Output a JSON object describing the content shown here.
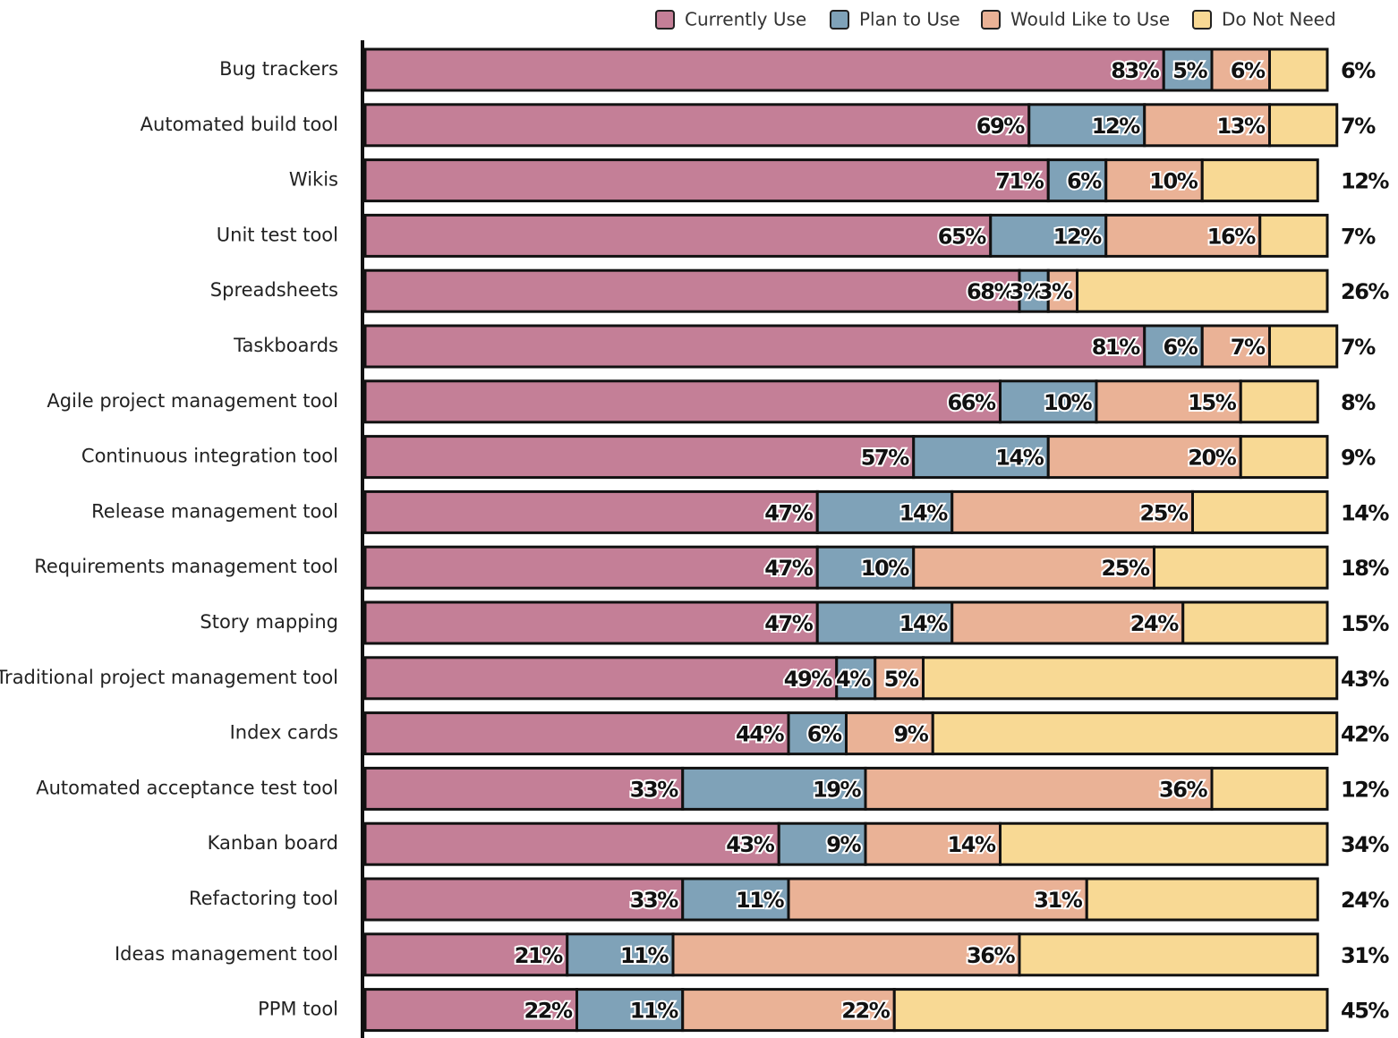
{
  "chart_data": {
    "type": "bar",
    "categories": [
      "Bug trackers",
      "Automated build tool",
      "Wikis",
      "Unit test tool",
      "Spreadsheets",
      "Taskboards",
      "Agile project management tool",
      "Continuous integration tool",
      "Release management tool",
      "Requirements management tool",
      "Story mapping",
      "Traditional project management tool",
      "Index cards",
      "Automated acceptance test tool",
      "Kanban board",
      "Refactoring tool",
      "Ideas management tool",
      "PPM tool"
    ],
    "series": [
      {
        "name": "Currently Use",
        "color": "#c47f97",
        "values": [
          83,
          69,
          71,
          65,
          68,
          81,
          66,
          57,
          47,
          47,
          47,
          49,
          44,
          33,
          43,
          33,
          21,
          22
        ],
        "value_labels": [
          "83%",
          "69%",
          "71%",
          "65%",
          "68%",
          "81%",
          "66%",
          "57%",
          "47%",
          "47%",
          "47%",
          "49%",
          "44%",
          "33%",
          "43%",
          "33%",
          "21%",
          "22%"
        ]
      },
      {
        "name": "Plan to Use",
        "color": "#7fa2b8",
        "values": [
          5,
          12,
          6,
          12,
          3,
          6,
          10,
          14,
          14,
          10,
          14,
          4,
          6,
          19,
          9,
          11,
          11,
          11
        ],
        "value_labels": [
          "5%",
          "12%",
          "6%",
          "12%",
          "3%",
          "6%",
          "10%",
          "14%",
          "14%",
          "10%",
          "14%",
          "4%",
          "6%",
          "19%",
          "9%",
          "11%",
          "11%",
          "11%"
        ]
      },
      {
        "name": "Would Like to Use",
        "color": "#eab296",
        "values": [
          6,
          13,
          10,
          16,
          3,
          7,
          15,
          20,
          25,
          25,
          24,
          5,
          9,
          36,
          14,
          31,
          36,
          22
        ],
        "value_labels": [
          "6%",
          "13%",
          "10%",
          "16%",
          "3%",
          "7%",
          "15%",
          "20%",
          "25%",
          "25%",
          "24%",
          "5%",
          "9%",
          "36%",
          "14%",
          "31%",
          "36%",
          "22%"
        ]
      },
      {
        "name": "Do Not Need",
        "color": "#f8d994",
        "values": [
          6,
          7,
          12,
          7,
          26,
          7,
          8,
          9,
          14,
          18,
          15,
          43,
          42,
          12,
          34,
          24,
          31,
          45
        ],
        "value_labels": [
          "6%",
          "7%",
          "12%",
          "7%",
          "26%",
          "7%",
          "8%",
          "9%",
          "14%",
          "18%",
          "15%",
          "43%",
          "42%",
          "12%",
          "34%",
          "24%",
          "31%",
          "45%"
        ]
      }
    ]
  }
}
